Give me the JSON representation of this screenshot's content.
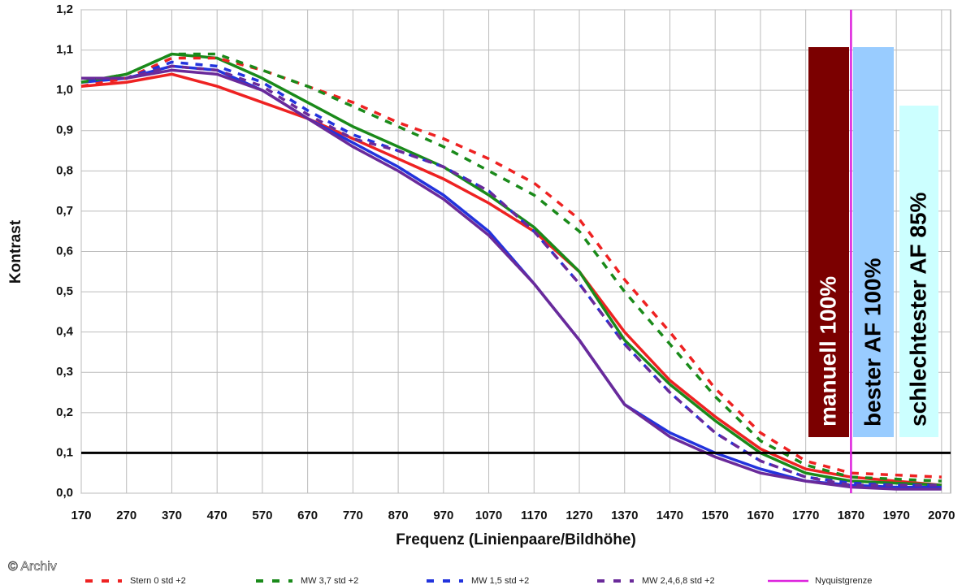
{
  "chart_data": {
    "type": "line",
    "x_label": "Frequenz (Linienpaare/Bildhöhe)",
    "y_label": "Kontrast",
    "x": [
      170,
      270,
      370,
      470,
      570,
      670,
      770,
      870,
      970,
      1070,
      1170,
      1270,
      1370,
      1470,
      1570,
      1670,
      1770,
      1870,
      1970,
      2070
    ],
    "series": [
      {
        "color": "#ee2222",
        "dashed": false,
        "values": [
          1.01,
          1.02,
          1.04,
          1.01,
          0.97,
          0.93,
          0.88,
          0.83,
          0.78,
          0.72,
          0.65,
          0.55,
          0.4,
          0.28,
          0.19,
          0.11,
          0.06,
          0.04,
          0.03,
          0.02
        ]
      },
      {
        "color": "#1a8a1a",
        "dashed": false,
        "values": [
          1.02,
          1.04,
          1.09,
          1.08,
          1.03,
          0.97,
          0.91,
          0.86,
          0.81,
          0.74,
          0.66,
          0.55,
          0.38,
          0.27,
          0.18,
          0.1,
          0.05,
          0.03,
          0.025,
          0.02
        ]
      },
      {
        "color": "#2233dd",
        "dashed": false,
        "values": [
          1.02,
          1.03,
          1.06,
          1.05,
          1.0,
          0.93,
          0.87,
          0.81,
          0.74,
          0.65,
          0.52,
          0.38,
          0.22,
          0.15,
          0.1,
          0.06,
          0.03,
          0.02,
          0.015,
          0.015
        ]
      },
      {
        "color": "#6a2a9a",
        "dashed": false,
        "values": [
          1.03,
          1.03,
          1.05,
          1.04,
          1.0,
          0.93,
          0.86,
          0.8,
          0.73,
          0.64,
          0.52,
          0.38,
          0.22,
          0.14,
          0.09,
          0.05,
          0.03,
          0.015,
          0.01,
          0.01
        ]
      },
      {
        "name": "Stern 0 std +2",
        "color": "#ee2222",
        "dashed": true,
        "values": [
          1.01,
          1.03,
          1.08,
          1.08,
          1.05,
          1.01,
          0.97,
          0.92,
          0.88,
          0.83,
          0.77,
          0.68,
          0.53,
          0.4,
          0.26,
          0.15,
          0.08,
          0.05,
          0.045,
          0.04
        ]
      },
      {
        "name": "MW 3,7 std +2",
        "color": "#1a8a1a",
        "dashed": true,
        "values": [
          1.02,
          1.04,
          1.09,
          1.09,
          1.05,
          1.01,
          0.96,
          0.91,
          0.86,
          0.8,
          0.74,
          0.65,
          0.5,
          0.37,
          0.24,
          0.13,
          0.07,
          0.04,
          0.035,
          0.03
        ]
      },
      {
        "name": "MW 1,5 std +2",
        "color": "#2233dd",
        "dashed": true,
        "values": [
          1.03,
          1.03,
          1.07,
          1.06,
          1.02,
          0.95,
          0.89,
          0.85,
          0.81,
          0.75,
          0.65,
          0.52,
          0.37,
          0.25,
          0.15,
          0.08,
          0.04,
          0.025,
          0.02,
          0.02
        ]
      },
      {
        "name": "MW 2,4,6,8 std +2",
        "color": "#6a2a9a",
        "dashed": true,
        "values": [
          1.03,
          1.03,
          1.06,
          1.05,
          1.01,
          0.94,
          0.88,
          0.85,
          0.81,
          0.75,
          0.65,
          0.52,
          0.37,
          0.25,
          0.15,
          0.08,
          0.04,
          0.02,
          0.02,
          0.02
        ]
      }
    ],
    "nyquist": {
      "name": "Nyquistgrenze",
      "x": 1870,
      "color": "#dd22dd"
    },
    "reference_line": 0.1,
    "annotations": [
      "manuell 100%",
      "bester AF 100%",
      "schlechtester AF 85%"
    ],
    "credit": "© Archiv",
    "xlim": [
      170,
      2090
    ],
    "ylim": [
      0,
      1.2
    ],
    "xticks": [
      170,
      270,
      370,
      470,
      570,
      670,
      770,
      870,
      970,
      1070,
      1170,
      1270,
      1370,
      1470,
      1570,
      1670,
      1770,
      1870,
      1970,
      2070
    ],
    "yticks": [
      {
        "value": 0,
        "label": "0,0"
      },
      {
        "value": 0.1,
        "label": "0,1"
      },
      {
        "value": 0.2,
        "label": "0,2"
      },
      {
        "value": 0.3,
        "label": "0,3"
      },
      {
        "value": 0.4,
        "label": "0,4"
      },
      {
        "value": 0.5,
        "label": "0,5"
      },
      {
        "value": 0.6,
        "label": "0,6"
      },
      {
        "value": 0.7,
        "label": "0,7"
      },
      {
        "value": 0.8,
        "label": "0,8"
      },
      {
        "value": 0.9,
        "label": "0,9"
      },
      {
        "value": 1.0,
        "label": "1,0"
      },
      {
        "value": 1.1,
        "label": "1,1"
      },
      {
        "value": 1.2,
        "label": "1,2"
      }
    ],
    "grid": true
  }
}
